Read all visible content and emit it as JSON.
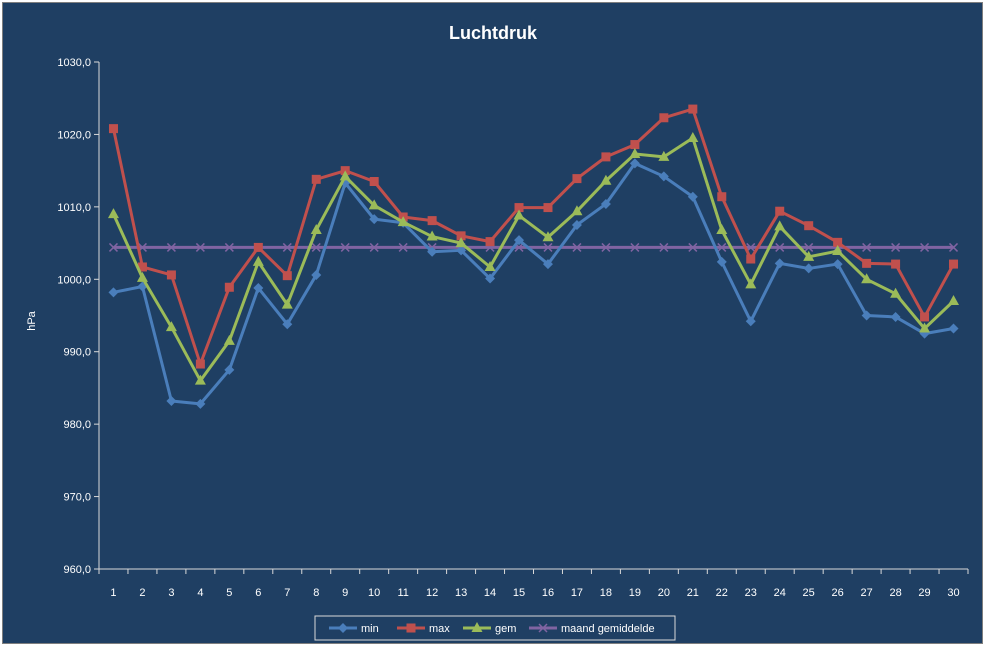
{
  "chart_data": {
    "type": "line",
    "title": "Luchtdruk",
    "ylabel": "hPa",
    "xlabel": "",
    "ylim": [
      960,
      1030
    ],
    "ytick_step": 10,
    "ytick_labels": [
      "960,0",
      "970,0",
      "980,0",
      "990,0",
      "1000,0",
      "1010,0",
      "1020,0",
      "1030,0"
    ],
    "categories": [
      "1",
      "2",
      "3",
      "4",
      "5",
      "6",
      "7",
      "8",
      "9",
      "10",
      "11",
      "12",
      "13",
      "14",
      "15",
      "16",
      "17",
      "18",
      "19",
      "20",
      "21",
      "22",
      "23",
      "24",
      "25",
      "26",
      "27",
      "28",
      "29",
      "30"
    ],
    "legend_position": "bottom",
    "grid": false,
    "series": [
      {
        "name": "min",
        "color": "#4a7ebb",
        "marker": "diamond",
        "values": [
          998.2,
          999.0,
          983.2,
          982.8,
          987.5,
          998.8,
          993.8,
          1000.6,
          1013.3,
          1008.3,
          1007.8,
          1003.8,
          1004.0,
          1000.1,
          1005.4,
          1002.1,
          1007.5,
          1010.4,
          1016.0,
          1014.2,
          1011.4,
          1002.4,
          994.2,
          1002.2,
          1001.5,
          1002.1,
          995.0,
          994.8,
          992.5,
          993.2
        ]
      },
      {
        "name": "max",
        "color": "#c0504d",
        "marker": "square",
        "values": [
          1020.8,
          1001.7,
          1000.6,
          988.3,
          998.9,
          1004.4,
          1000.5,
          1013.8,
          1015.0,
          1013.5,
          1008.6,
          1008.1,
          1006.0,
          1005.2,
          1009.9,
          1009.9,
          1013.9,
          1016.9,
          1018.6,
          1022.3,
          1023.5,
          1011.4,
          1002.8,
          1009.4,
          1007.4,
          1005.1,
          1002.2,
          1002.1,
          994.8,
          1002.1
        ]
      },
      {
        "name": "gem",
        "color": "#9bbb59",
        "marker": "triangle",
        "values": [
          1009.0,
          1000.2,
          993.4,
          986.0,
          991.5,
          1002.4,
          996.5,
          1006.8,
          1014.2,
          1010.2,
          1007.9,
          1005.9,
          1005.0,
          1001.7,
          1008.8,
          1005.8,
          1009.4,
          1013.6,
          1017.3,
          1016.9,
          1019.5,
          1006.8,
          999.3,
          1007.3,
          1003.1,
          1003.9,
          1000.0,
          998.0,
          993.2,
          997.0
        ]
      },
      {
        "name": "maand gemiddelde",
        "color": "#8064a2",
        "marker": "x",
        "values": [
          1004.4,
          1004.4,
          1004.4,
          1004.4,
          1004.4,
          1004.4,
          1004.4,
          1004.4,
          1004.4,
          1004.4,
          1004.4,
          1004.4,
          1004.4,
          1004.4,
          1004.4,
          1004.4,
          1004.4,
          1004.4,
          1004.4,
          1004.4,
          1004.4,
          1004.4,
          1004.4,
          1004.4,
          1004.4,
          1004.4,
          1004.4,
          1004.4,
          1004.4,
          1004.4
        ]
      }
    ]
  }
}
